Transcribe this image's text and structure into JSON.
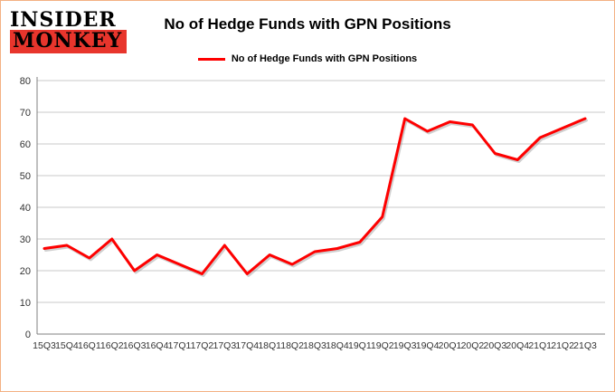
{
  "logo": {
    "line1": "INSIDER",
    "line2": "MONKEY",
    "accent_color": "#e8352c"
  },
  "header": {
    "title": "No of Hedge Funds with GPN Positions"
  },
  "legend": {
    "label": "No of Hedge Funds with GPN Positions",
    "color": "#fe0000"
  },
  "chart_data": {
    "type": "line",
    "title": "No of Hedge Funds with GPN Positions",
    "categories": [
      "15Q3",
      "15Q4",
      "16Q1",
      "16Q2",
      "16Q3",
      "16Q4",
      "17Q1",
      "17Q2",
      "17Q3",
      "17Q4",
      "18Q1",
      "18Q2",
      "18Q3",
      "18Q4",
      "19Q1",
      "19Q2",
      "19Q3",
      "19Q4",
      "20Q1",
      "20Q2",
      "20Q3",
      "20Q4",
      "21Q1",
      "21Q2",
      "21Q3"
    ],
    "series": [
      {
        "name": "No of Hedge Funds with GPN Positions",
        "color": "#fe0000",
        "values": [
          27,
          28,
          24,
          30,
          20,
          25,
          22,
          19,
          28,
          19,
          25,
          22,
          26,
          27,
          29,
          37,
          68,
          64,
          67,
          66,
          57,
          55,
          62,
          65,
          68
        ]
      }
    ],
    "xlabel": "",
    "ylabel": "",
    "ylim": [
      0,
      80
    ],
    "ytick_step": 10,
    "grid": true,
    "gridline_color": "#c8c8c8",
    "axis_color": "#808080",
    "tick_label_color": "#333333",
    "legend_position": "top"
  }
}
